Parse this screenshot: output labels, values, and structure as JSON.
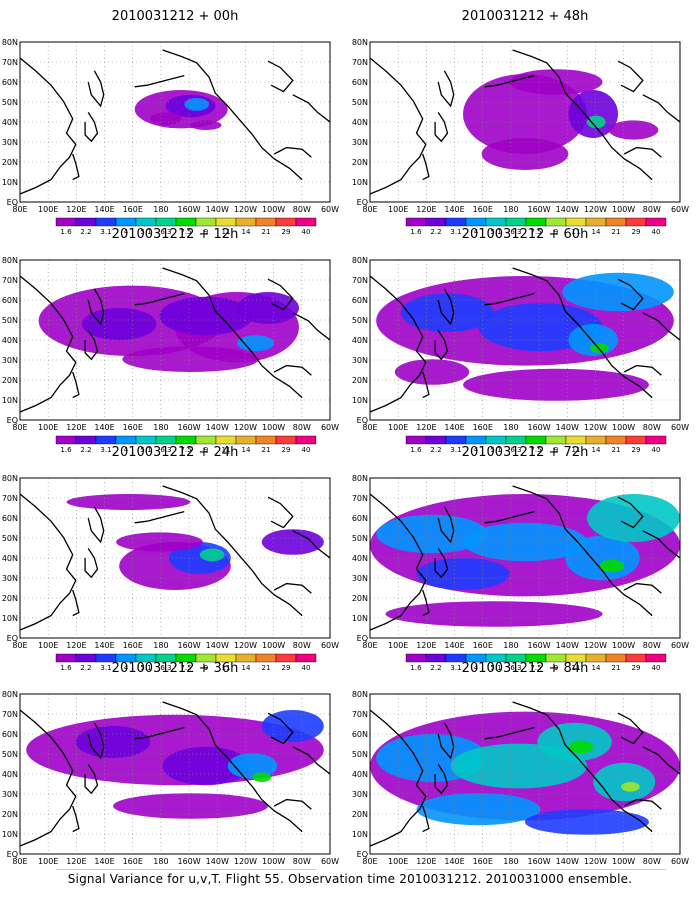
{
  "panels": [
    {
      "title": "2010031212 + 00h",
      "level": 0
    },
    {
      "title": "2010031212 + 48h",
      "level": 4
    },
    {
      "title": "2010031212 + 12h",
      "level": 1
    },
    {
      "title": "2010031212 + 60h",
      "level": 5
    },
    {
      "title": "2010031212 + 24h",
      "level": 2
    },
    {
      "title": "2010031212 + 72h",
      "level": 6
    },
    {
      "title": "2010031212 + 36h",
      "level": 3
    },
    {
      "title": "2010031212 + 84h",
      "level": 7
    }
  ],
  "lat_labels": [
    "80N",
    "70N",
    "60N",
    "50N",
    "40N",
    "30N",
    "20N",
    "10N",
    "EQ"
  ],
  "lon_labels": [
    "80E",
    "100E",
    "120E",
    "140E",
    "160E",
    "180",
    "160W",
    "140W",
    "120W",
    "100W",
    "80W",
    "60W"
  ],
  "colorbar": {
    "labels": [
      "1.6",
      "2.2",
      "3.1",
      "4",
      "5.1",
      "6.3",
      "7.5",
      "9",
      "11",
      "14",
      "21",
      "29",
      "40"
    ],
    "colors": [
      "#a000c8",
      "#6e00dc",
      "#1e3cff",
      "#0096ff",
      "#00c8c8",
      "#00d28c",
      "#00dc00",
      "#a0e632",
      "#e6dc32",
      "#e6af2d",
      "#f08228",
      "#fa3c3c",
      "#f00082"
    ]
  },
  "caption": "Signal Variance for u,v,T. Flight 55. Observation time 2010031212. 2010031000 ensemble."
}
